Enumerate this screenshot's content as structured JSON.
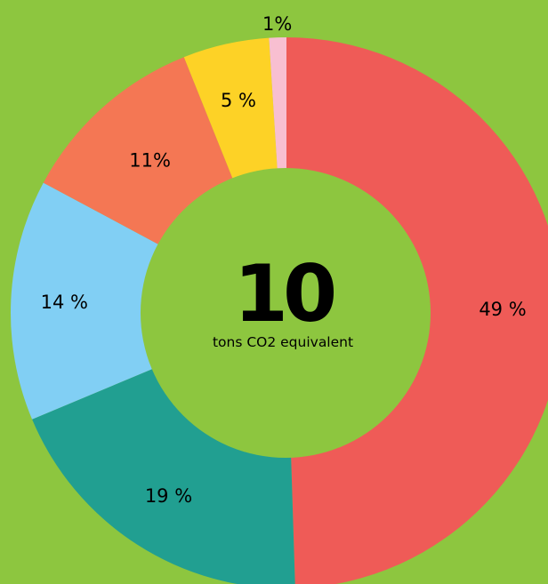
{
  "chart_data": {
    "type": "pie",
    "variant": "donut",
    "values": [
      49,
      19,
      14,
      11,
      5,
      1
    ],
    "labels": [
      "49 %",
      "19 %",
      "14 %",
      "11%",
      "5 %",
      "1%"
    ],
    "colors": [
      "#ef5b57",
      "#219f91",
      "#81cff4",
      "#f47754",
      "#fdd226",
      "#f8bfd1"
    ],
    "background_color": "#8dc63f",
    "center": {
      "total": "10",
      "unit": "tons CO2 equivalent"
    },
    "legend": "none"
  }
}
